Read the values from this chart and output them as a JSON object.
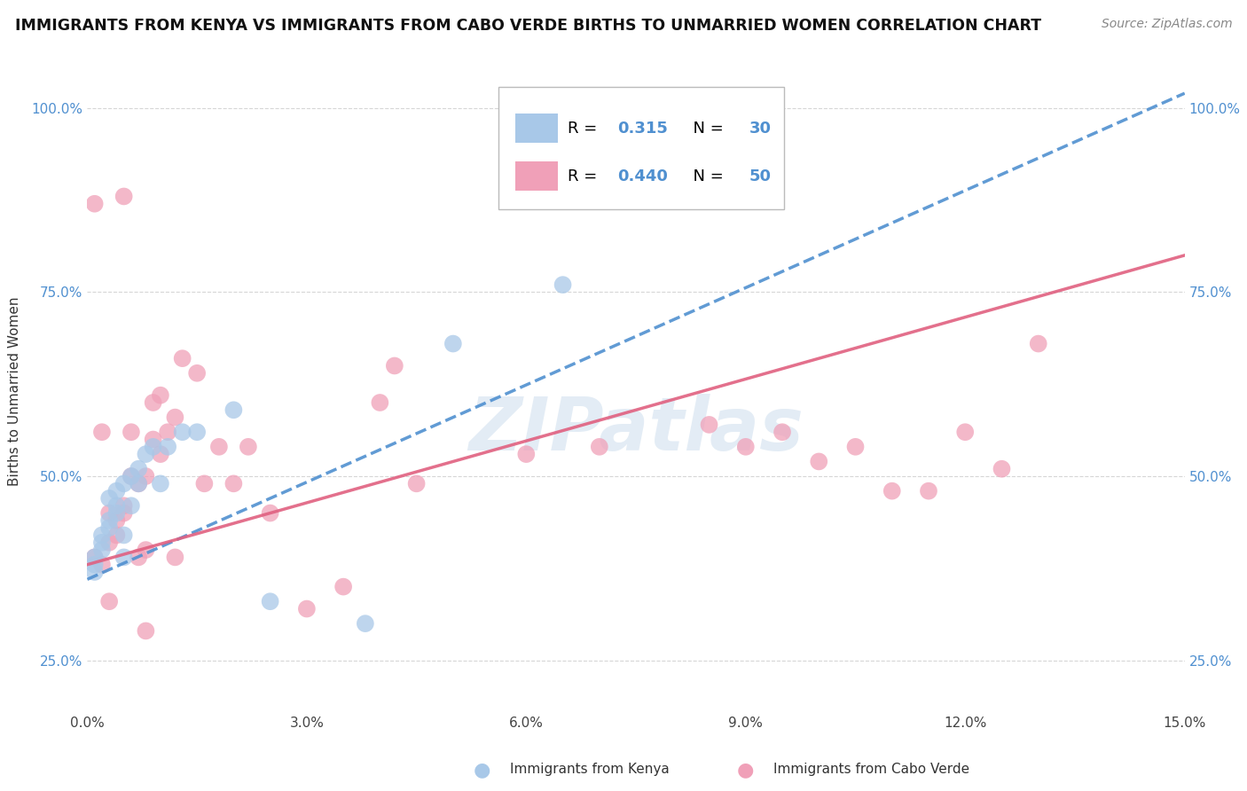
{
  "title": "IMMIGRANTS FROM KENYA VS IMMIGRANTS FROM CABO VERDE BIRTHS TO UNMARRIED WOMEN CORRELATION CHART",
  "source": "Source: ZipAtlas.com",
  "ylabel": "Births to Unmarried Women",
  "xlim": [
    0.0,
    0.15
  ],
  "ylim": [
    0.18,
    1.05
  ],
  "xticks": [
    0.0,
    0.03,
    0.06,
    0.09,
    0.12,
    0.15
  ],
  "xticklabels": [
    "0.0%",
    "3.0%",
    "6.0%",
    "9.0%",
    "12.0%",
    "15.0%"
  ],
  "yticks": [
    0.25,
    0.5,
    0.75,
    1.0
  ],
  "yticklabels": [
    "25.0%",
    "50.0%",
    "75.0%",
    "100.0%"
  ],
  "kenya_color": "#a8c8e8",
  "caboverde_color": "#f0a0b8",
  "kenya_line_color": "#5090d0",
  "caboverde_line_color": "#e06080",
  "kenya_R": 0.315,
  "kenya_N": 30,
  "caboverde_R": 0.44,
  "caboverde_N": 50,
  "watermark_text": "ZIPatlas",
  "kenya_x": [
    0.001,
    0.001,
    0.001,
    0.002,
    0.002,
    0.002,
    0.003,
    0.003,
    0.003,
    0.004,
    0.004,
    0.004,
    0.005,
    0.005,
    0.005,
    0.006,
    0.006,
    0.007,
    0.007,
    0.008,
    0.009,
    0.01,
    0.011,
    0.013,
    0.015,
    0.02,
    0.025,
    0.038,
    0.05,
    0.065
  ],
  "kenya_y": [
    0.39,
    0.38,
    0.37,
    0.4,
    0.41,
    0.42,
    0.43,
    0.44,
    0.47,
    0.45,
    0.46,
    0.48,
    0.39,
    0.42,
    0.49,
    0.46,
    0.5,
    0.51,
    0.49,
    0.53,
    0.54,
    0.49,
    0.54,
    0.56,
    0.56,
    0.59,
    0.33,
    0.3,
    0.68,
    0.76
  ],
  "caboverde_x": [
    0.001,
    0.001,
    0.002,
    0.002,
    0.003,
    0.003,
    0.004,
    0.004,
    0.005,
    0.005,
    0.005,
    0.006,
    0.006,
    0.007,
    0.007,
    0.008,
    0.008,
    0.009,
    0.009,
    0.01,
    0.01,
    0.011,
    0.012,
    0.013,
    0.015,
    0.016,
    0.018,
    0.02,
    0.022,
    0.025,
    0.03,
    0.035,
    0.04,
    0.042,
    0.045,
    0.06,
    0.07,
    0.085,
    0.09,
    0.095,
    0.1,
    0.105,
    0.11,
    0.115,
    0.12,
    0.125,
    0.13,
    0.003,
    0.008,
    0.012
  ],
  "caboverde_y": [
    0.39,
    0.87,
    0.38,
    0.56,
    0.33,
    0.41,
    0.42,
    0.44,
    0.45,
    0.46,
    0.88,
    0.5,
    0.56,
    0.39,
    0.49,
    0.4,
    0.5,
    0.55,
    0.6,
    0.53,
    0.61,
    0.56,
    0.58,
    0.66,
    0.64,
    0.49,
    0.54,
    0.49,
    0.54,
    0.45,
    0.32,
    0.35,
    0.6,
    0.65,
    0.49,
    0.53,
    0.54,
    0.57,
    0.54,
    0.56,
    0.52,
    0.54,
    0.48,
    0.48,
    0.56,
    0.51,
    0.68,
    0.45,
    0.29,
    0.39
  ]
}
